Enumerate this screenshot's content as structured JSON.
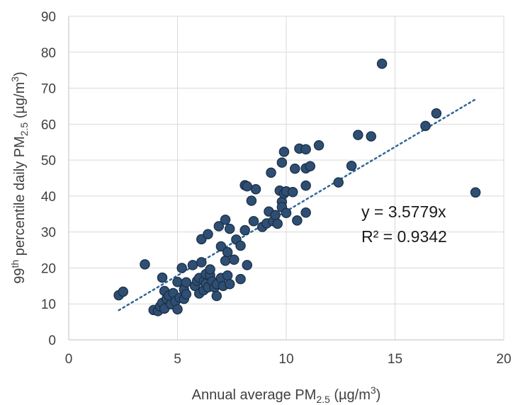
{
  "chart_data": {
    "type": "scatter",
    "title": "",
    "xlabel": {
      "pre": "Annual average PM",
      "sub": "2.5",
      "post": " (µg/m",
      "sup": "3",
      "end": ")"
    },
    "ylabel": {
      "sup1": "th",
      "pre_num": "99",
      "mid": " percentile daily PM",
      "sub": "2.5",
      "post": " (µg/m",
      "sup": "3",
      "end": ")"
    },
    "xlim": [
      0,
      20
    ],
    "ylim": [
      0,
      90
    ],
    "x_ticks": [
      0,
      5,
      10,
      15,
      20
    ],
    "y_ticks": [
      0,
      10,
      20,
      30,
      40,
      50,
      60,
      70,
      80,
      90
    ],
    "grid": true,
    "marker_color": "#2e4f73",
    "marker_edge_color": "#1b2f46",
    "trendline": {
      "type": "linear_through_origin",
      "slope": 3.5779,
      "x_range": [
        2.3,
        18.7
      ],
      "color": "#2e6699",
      "style": "dotted"
    },
    "annotations": [
      {
        "text": "y = 3.5779x",
        "x": 13.4,
        "y": 34.5
      },
      {
        "text": "R² = 0.9342",
        "x": 13.4,
        "y": 28.0
      }
    ],
    "series": [
      {
        "points": [
          [
            2.3,
            12.4
          ],
          [
            2.5,
            13.4
          ],
          [
            3.5,
            21.0
          ],
          [
            3.9,
            8.3
          ],
          [
            4.1,
            8.0
          ],
          [
            4.2,
            9.3
          ],
          [
            4.3,
            17.3
          ],
          [
            4.3,
            10.3
          ],
          [
            4.4,
            13.6
          ],
          [
            4.4,
            8.7
          ],
          [
            4.5,
            11.4
          ],
          [
            4.6,
            12.3
          ],
          [
            4.7,
            9.9
          ],
          [
            4.8,
            13.0
          ],
          [
            4.9,
            10.7
          ],
          [
            5.0,
            8.5
          ],
          [
            5.0,
            16.1
          ],
          [
            5.1,
            11.7
          ],
          [
            5.2,
            20.0
          ],
          [
            5.3,
            14.0
          ],
          [
            5.3,
            11.4
          ],
          [
            5.4,
            12.7
          ],
          [
            5.4,
            16.0
          ],
          [
            5.7,
            20.8
          ],
          [
            5.8,
            15.0
          ],
          [
            5.9,
            16.4
          ],
          [
            6.0,
            12.9
          ],
          [
            6.0,
            17.2
          ],
          [
            6.1,
            21.6
          ],
          [
            6.1,
            28.0
          ],
          [
            6.2,
            13.8
          ],
          [
            6.2,
            16.3
          ],
          [
            6.3,
            18.3
          ],
          [
            6.3,
            15.6
          ],
          [
            6.4,
            14.6
          ],
          [
            6.4,
            29.4
          ],
          [
            6.5,
            18.0
          ],
          [
            6.5,
            19.6
          ],
          [
            6.6,
            16.3
          ],
          [
            6.7,
            14.6
          ],
          [
            6.8,
            12.2
          ],
          [
            6.8,
            15.5
          ],
          [
            6.9,
            31.6
          ],
          [
            7.0,
            17.2
          ],
          [
            7.0,
            26.0
          ],
          [
            7.1,
            15.0
          ],
          [
            7.2,
            33.4
          ],
          [
            7.2,
            22.0
          ],
          [
            7.3,
            17.9
          ],
          [
            7.3,
            24.4
          ],
          [
            7.4,
            15.5
          ],
          [
            7.4,
            30.9
          ],
          [
            7.6,
            22.3
          ],
          [
            7.7,
            27.9
          ],
          [
            7.9,
            16.9
          ],
          [
            7.9,
            26.2
          ],
          [
            8.1,
            43.0
          ],
          [
            8.1,
            30.5
          ],
          [
            8.2,
            42.7
          ],
          [
            8.2,
            20.8
          ],
          [
            8.4,
            38.7
          ],
          [
            8.5,
            33.0
          ],
          [
            8.6,
            41.9
          ],
          [
            8.9,
            31.4
          ],
          [
            9.1,
            32.4
          ],
          [
            9.2,
            35.7
          ],
          [
            9.3,
            46.5
          ],
          [
            9.4,
            33.0
          ],
          [
            9.5,
            34.7
          ],
          [
            9.6,
            32.3
          ],
          [
            9.7,
            41.5
          ],
          [
            9.8,
            49.3
          ],
          [
            9.8,
            38.4
          ],
          [
            9.8,
            36.9
          ],
          [
            9.9,
            52.3
          ],
          [
            9.9,
            40.7
          ],
          [
            10.0,
            35.3
          ],
          [
            10.0,
            41.3
          ],
          [
            10.3,
            41.1
          ],
          [
            10.4,
            47.6
          ],
          [
            10.5,
            33.2
          ],
          [
            10.6,
            53.2
          ],
          [
            10.9,
            53.0
          ],
          [
            10.9,
            47.7
          ],
          [
            10.9,
            42.9
          ],
          [
            10.9,
            35.4
          ],
          [
            11.1,
            48.3
          ],
          [
            11.5,
            54.1
          ],
          [
            12.4,
            43.8
          ],
          [
            13.0,
            48.4
          ],
          [
            13.3,
            57.0
          ],
          [
            13.9,
            56.6
          ],
          [
            14.4,
            76.8
          ],
          [
            16.4,
            59.5
          ],
          [
            16.9,
            63.0
          ],
          [
            18.7,
            41.0
          ]
        ]
      }
    ]
  }
}
